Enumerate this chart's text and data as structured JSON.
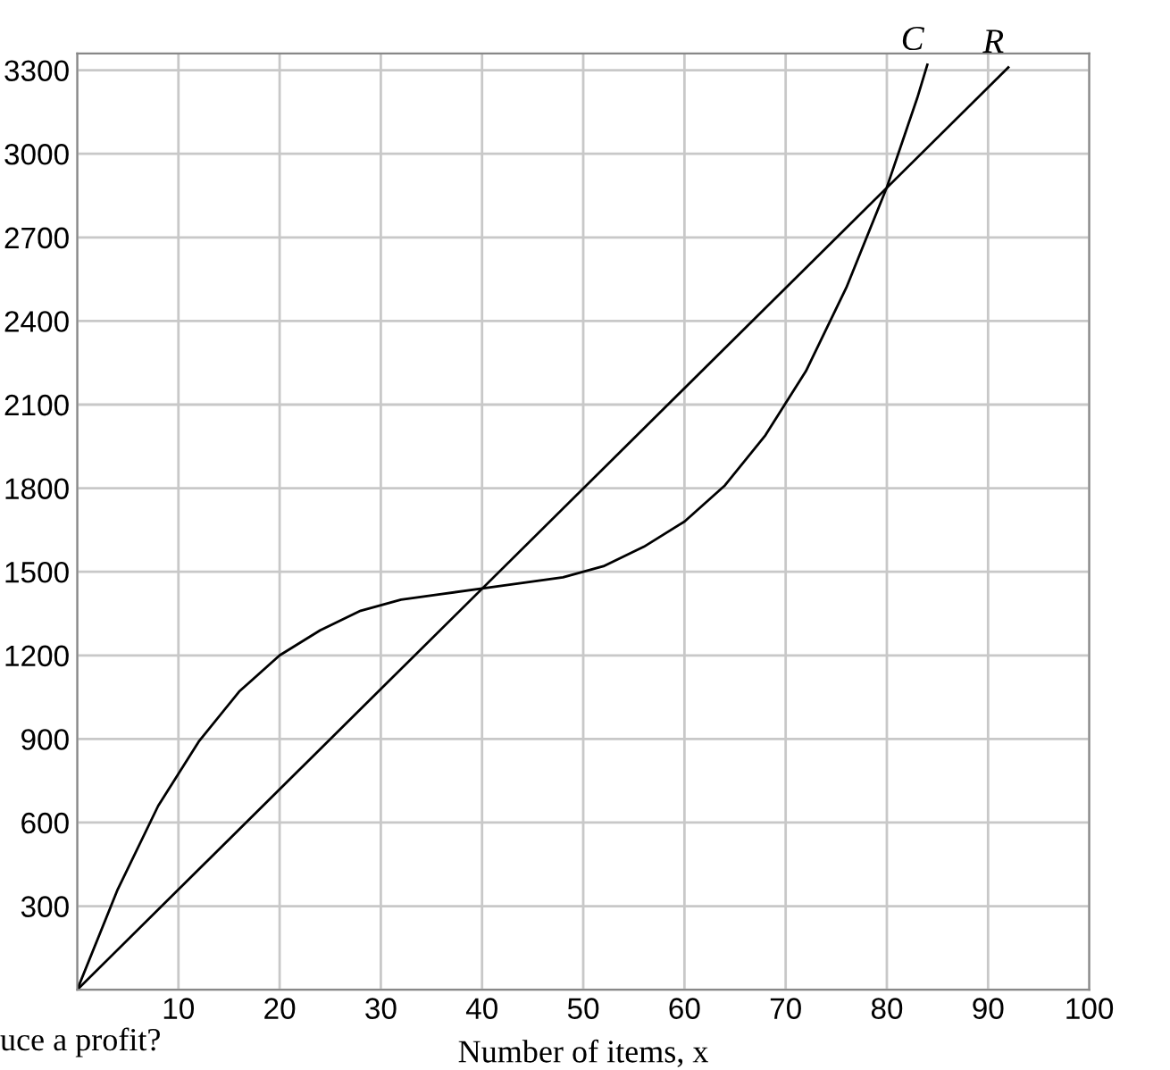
{
  "chart_data": {
    "type": "line",
    "xlabel": "Number of items, x",
    "xlim": [
      0,
      100
    ],
    "xticks": [
      {
        "value": 0,
        "label": null
      },
      10,
      20,
      30,
      40,
      50,
      60,
      70,
      80,
      90,
      100
    ],
    "ylim": [
      0,
      3360
    ],
    "yticks": [
      {
        "value": 0,
        "label": null
      },
      300,
      600,
      900,
      1200,
      1500,
      1800,
      2100,
      2400,
      2700,
      3000,
      3300
    ],
    "grid": true,
    "legend": false,
    "marker": "none",
    "line_style": "solid",
    "series": [
      {
        "name": "C",
        "color": "#000000",
        "x": [
          0,
          4,
          8,
          12,
          16,
          20,
          24,
          28,
          32,
          36,
          40,
          44,
          48,
          52,
          56,
          60,
          64,
          68,
          72,
          76,
          80,
          83,
          84
        ],
        "values": [
          0,
          360,
          660,
          890,
          1070,
          1200,
          1290,
          1360,
          1400,
          1420,
          1440,
          1460,
          1480,
          1520,
          1590,
          1680,
          1810,
          1990,
          2220,
          2520,
          2880,
          3200,
          3320
        ]
      },
      {
        "name": "R",
        "color": "#000000",
        "x": [
          0,
          92
        ],
        "values": [
          0,
          3310
        ]
      }
    ],
    "annotations": [
      "uce a profit?"
    ]
  }
}
